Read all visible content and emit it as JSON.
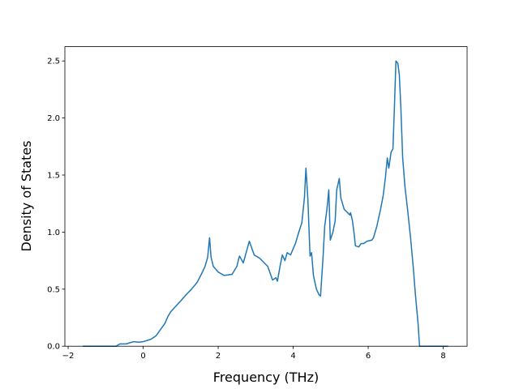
{
  "chart_data": {
    "type": "line",
    "xlabel": "Frequency (THz)",
    "ylabel": "Density of States",
    "x": [
      -1.61,
      -0.72,
      -0.62,
      -0.45,
      -0.36,
      -0.25,
      -0.12,
      0,
      0.2,
      0.34,
      0.45,
      0.58,
      0.66,
      0.73,
      0.84,
      1.01,
      1.14,
      1.29,
      1.44,
      1.55,
      1.65,
      1.72,
      1.77,
      1.81,
      1.87,
      2.0,
      2.16,
      2.37,
      2.5,
      2.55,
      2.57,
      2.67,
      2.83,
      2.96,
      3.11,
      3.17,
      3.32,
      3.45,
      3.54,
      3.58,
      3.65,
      3.71,
      3.78,
      3.84,
      3.93,
      4.06,
      4.15,
      4.23,
      4.3,
      4.34,
      4.39,
      4.45,
      4.49,
      4.54,
      4.62,
      4.69,
      4.73,
      4.8,
      4.84,
      4.9,
      4.95,
      4.99,
      5.06,
      5.12,
      5.16,
      5.23,
      5.27,
      5.36,
      5.45,
      5.51,
      5.53,
      5.58,
      5.62,
      5.66,
      5.75,
      5.81,
      5.88,
      5.97,
      6.1,
      6.14,
      6.23,
      6.33,
      6.4,
      6.46,
      6.51,
      6.55,
      6.61,
      6.66,
      6.7,
      6.74,
      6.79,
      6.83,
      6.87,
      6.92,
      6.98,
      7.05,
      7.13,
      7.2,
      7.26,
      7.33,
      7.37,
      8.13
    ],
    "series": [
      {
        "name": "DOS",
        "color": "#1f77b4",
        "values": [
          0,
          0,
          0.02,
          0.02,
          0.03,
          0.04,
          0.035,
          0.04,
          0.06,
          0.09,
          0.14,
          0.2,
          0.26,
          0.3,
          0.34,
          0.4,
          0.45,
          0.5,
          0.56,
          0.63,
          0.7,
          0.78,
          0.95,
          0.78,
          0.7,
          0.65,
          0.62,
          0.63,
          0.7,
          0.77,
          0.79,
          0.73,
          0.92,
          0.8,
          0.77,
          0.75,
          0.7,
          0.58,
          0.6,
          0.57,
          0.7,
          0.8,
          0.75,
          0.82,
          0.8,
          0.9,
          1.0,
          1.08,
          1.3,
          1.56,
          1.3,
          0.79,
          0.82,
          0.62,
          0.5,
          0.45,
          0.44,
          0.8,
          1.05,
          1.2,
          1.37,
          0.93,
          1.0,
          1.1,
          1.37,
          1.47,
          1.3,
          1.2,
          1.17,
          1.15,
          1.17,
          1.1,
          1.0,
          0.88,
          0.87,
          0.9,
          0.9,
          0.92,
          0.93,
          0.95,
          1.05,
          1.2,
          1.32,
          1.48,
          1.65,
          1.56,
          1.7,
          1.73,
          2.1,
          2.5,
          2.48,
          2.38,
          2.1,
          1.65,
          1.4,
          1.2,
          0.95,
          0.7,
          0.45,
          0.2,
          0,
          0
        ]
      }
    ],
    "xlim": [
      -2.0875,
      8.6375
    ],
    "ylim": [
      0,
      2.625
    ],
    "xticks": [
      {
        "value": -2,
        "label": "−2"
      },
      0,
      2,
      4,
      6,
      8
    ],
    "yticks": [
      {
        "value": 0,
        "label": "0.0"
      },
      {
        "value": 0.5,
        "label": "0.5"
      },
      {
        "value": 1,
        "label": "1.0"
      },
      {
        "value": 1.5,
        "label": "1.5"
      },
      {
        "value": 2,
        "label": "2.0"
      },
      {
        "value": 2.5,
        "label": "2.5"
      }
    ],
    "grid": false
  }
}
